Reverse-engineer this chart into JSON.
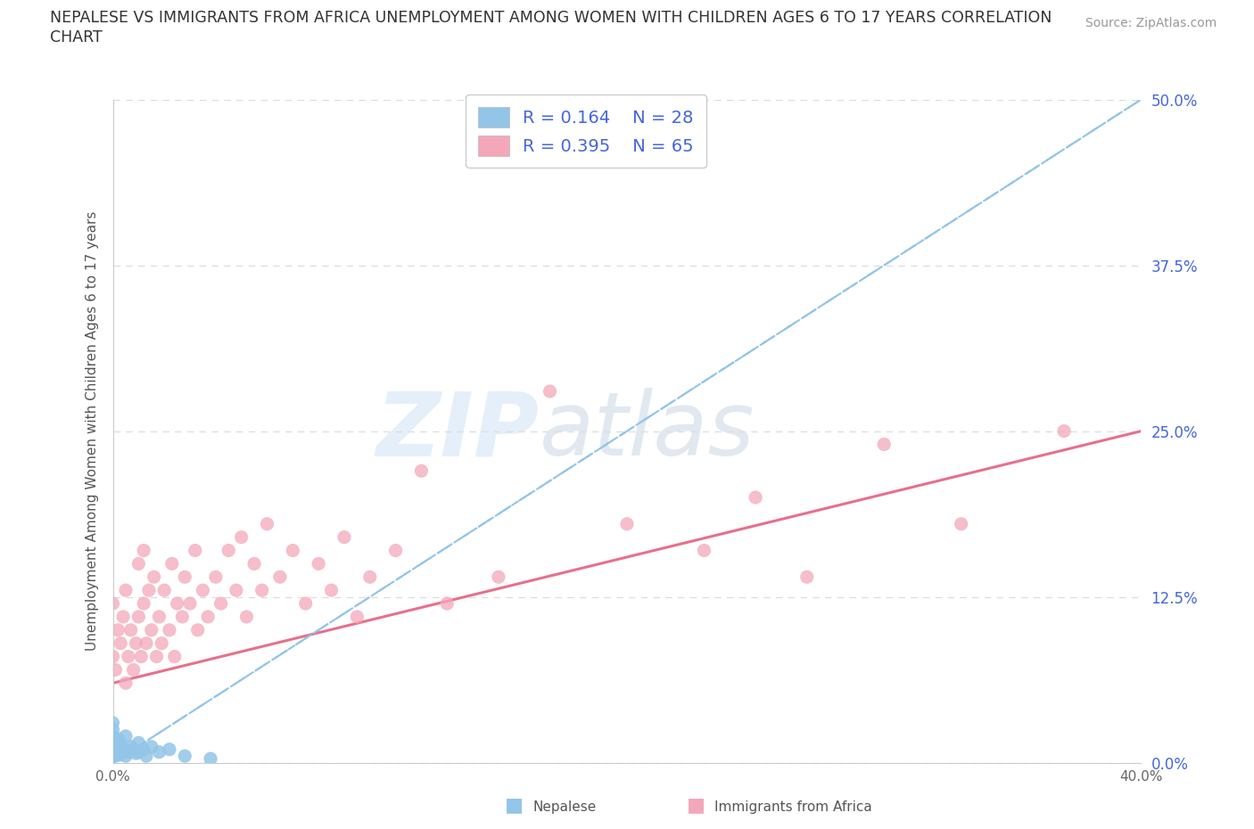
{
  "title_line1": "NEPALESE VS IMMIGRANTS FROM AFRICA UNEMPLOYMENT AMONG WOMEN WITH CHILDREN AGES 6 TO 17 YEARS CORRELATION",
  "title_line2": "CHART",
  "source": "Source: ZipAtlas.com",
  "ylabel": "Unemployment Among Women with Children Ages 6 to 17 years",
  "xlim": [
    0.0,
    0.4
  ],
  "ylim": [
    0.0,
    0.5
  ],
  "yticks": [
    0.0,
    0.125,
    0.25,
    0.375,
    0.5
  ],
  "xticks": [
    0.0,
    0.05,
    0.1,
    0.15,
    0.2,
    0.25,
    0.3,
    0.35,
    0.4
  ],
  "ytick_labels": [
    "0.0%",
    "12.5%",
    "25.0%",
    "37.5%",
    "50.0%"
  ],
  "xtick_labels": [
    "0.0%",
    "",
    "",
    "",
    "",
    "",
    "",
    "",
    "40.0%"
  ],
  "watermark_zip": "ZIP",
  "watermark_atlas": "atlas",
  "R_nepalese": 0.164,
  "N_nepalese": 28,
  "R_africa": 0.395,
  "N_africa": 65,
  "color_nepalese": "#92C5E8",
  "color_africa": "#F4A7B9",
  "color_trendline_nepalese": "#92C5E8",
  "color_trendline_africa": "#E8708A",
  "color_title": "#333333",
  "color_source": "#999999",
  "color_axis_right": "#4466DD",
  "color_legend_text": "#4466DD",
  "background": "#FFFFFF",
  "grid_color": "#DDDDDD",
  "nep_x": [
    0.0,
    0.0,
    0.0,
    0.0,
    0.0,
    0.0,
    0.001,
    0.001,
    0.002,
    0.002,
    0.003,
    0.003,
    0.004,
    0.005,
    0.005,
    0.006,
    0.007,
    0.008,
    0.009,
    0.01,
    0.01,
    0.012,
    0.013,
    0.015,
    0.018,
    0.022,
    0.028,
    0.038
  ],
  "nep_y": [
    0.005,
    0.01,
    0.015,
    0.02,
    0.025,
    0.03,
    0.005,
    0.012,
    0.008,
    0.018,
    0.006,
    0.015,
    0.01,
    0.005,
    0.02,
    0.008,
    0.012,
    0.01,
    0.007,
    0.008,
    0.015,
    0.01,
    0.005,
    0.012,
    0.008,
    0.01,
    0.005,
    0.003
  ],
  "afr_x": [
    0.0,
    0.0,
    0.001,
    0.002,
    0.003,
    0.004,
    0.005,
    0.005,
    0.006,
    0.007,
    0.008,
    0.009,
    0.01,
    0.01,
    0.011,
    0.012,
    0.012,
    0.013,
    0.014,
    0.015,
    0.016,
    0.017,
    0.018,
    0.019,
    0.02,
    0.022,
    0.023,
    0.024,
    0.025,
    0.027,
    0.028,
    0.03,
    0.032,
    0.033,
    0.035,
    0.037,
    0.04,
    0.042,
    0.045,
    0.048,
    0.05,
    0.052,
    0.055,
    0.058,
    0.06,
    0.065,
    0.07,
    0.075,
    0.08,
    0.085,
    0.09,
    0.095,
    0.1,
    0.11,
    0.12,
    0.13,
    0.15,
    0.17,
    0.2,
    0.23,
    0.25,
    0.27,
    0.3,
    0.33,
    0.37
  ],
  "afr_y": [
    0.08,
    0.12,
    0.07,
    0.1,
    0.09,
    0.11,
    0.06,
    0.13,
    0.08,
    0.1,
    0.07,
    0.09,
    0.11,
    0.15,
    0.08,
    0.12,
    0.16,
    0.09,
    0.13,
    0.1,
    0.14,
    0.08,
    0.11,
    0.09,
    0.13,
    0.1,
    0.15,
    0.08,
    0.12,
    0.11,
    0.14,
    0.12,
    0.16,
    0.1,
    0.13,
    0.11,
    0.14,
    0.12,
    0.16,
    0.13,
    0.17,
    0.11,
    0.15,
    0.13,
    0.18,
    0.14,
    0.16,
    0.12,
    0.15,
    0.13,
    0.17,
    0.11,
    0.14,
    0.16,
    0.22,
    0.12,
    0.14,
    0.28,
    0.18,
    0.16,
    0.2,
    0.14,
    0.24,
    0.18,
    0.25
  ],
  "trendline_nep_x0": 0.0,
  "trendline_nep_y0": 0.0,
  "trendline_nep_x1": 0.4,
  "trendline_nep_y1": 0.5,
  "trendline_afr_x0": 0.0,
  "trendline_afr_y0": 0.06,
  "trendline_afr_x1": 0.4,
  "trendline_afr_y1": 0.25
}
